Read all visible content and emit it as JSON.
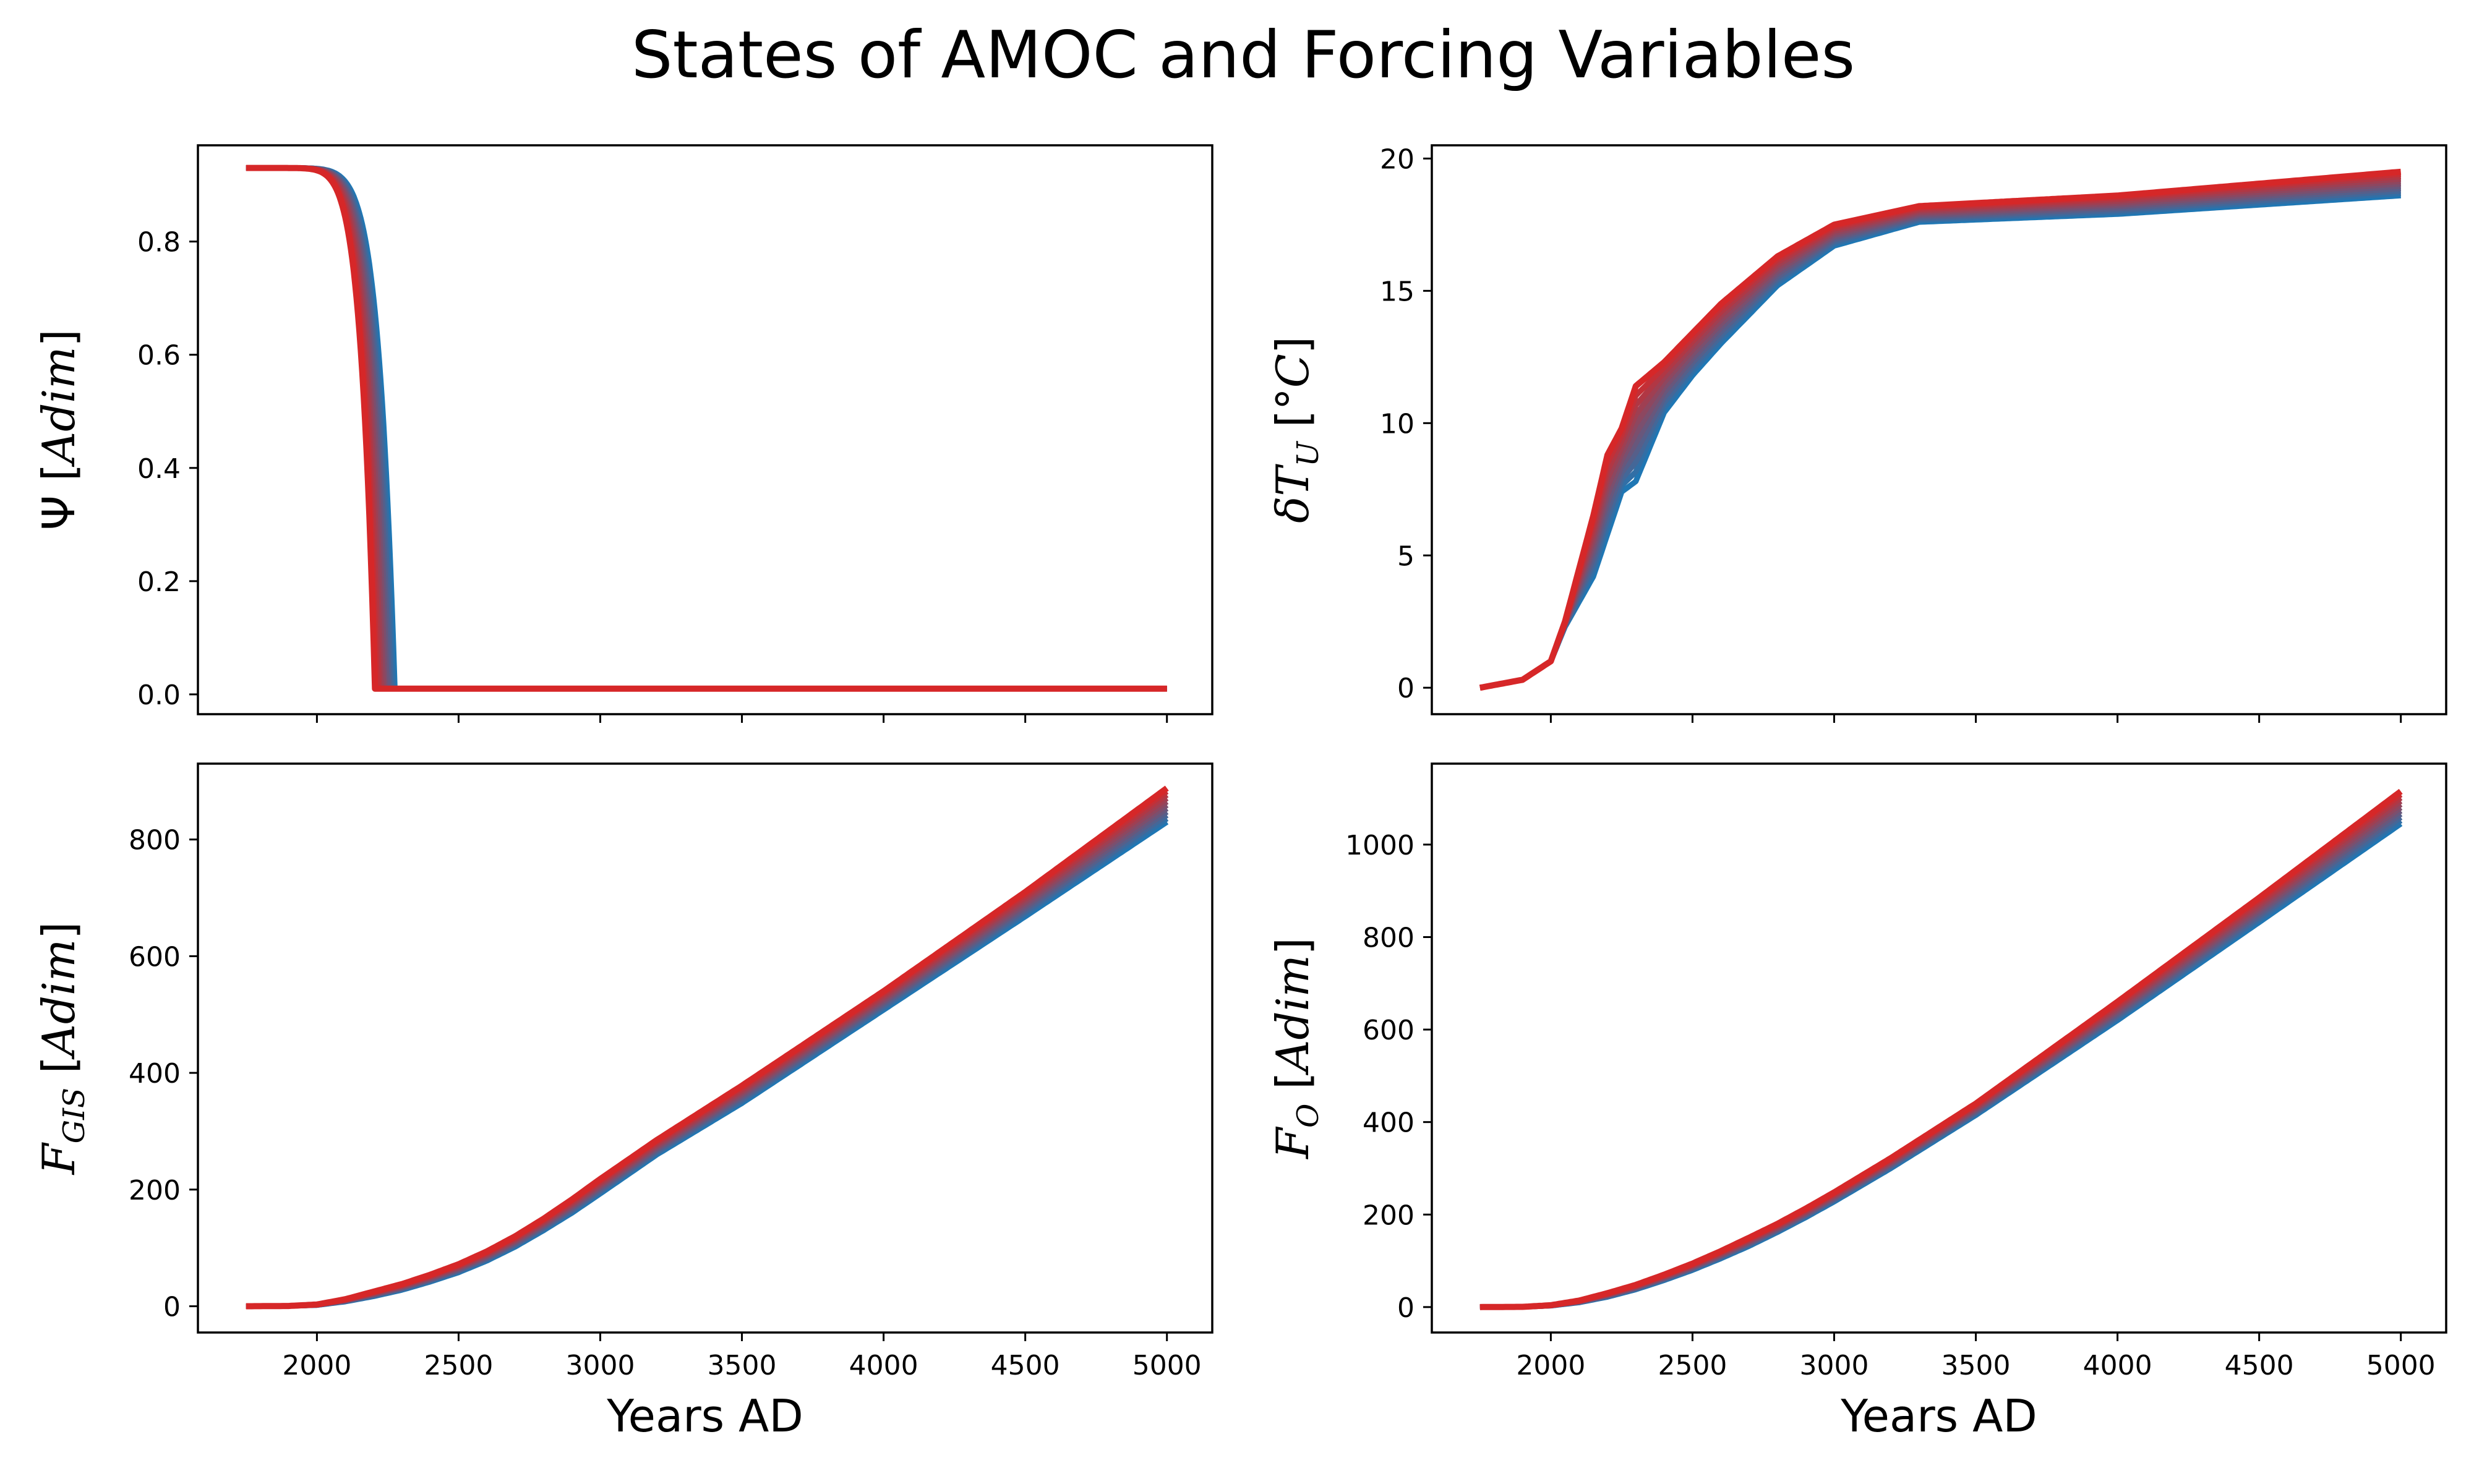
{
  "title": "States of AMOC and Forcing Variables",
  "chart_data": [
    {
      "type": "line",
      "panel": "top-left",
      "ylabel": "Ψ [Adim]",
      "xlabel": "",
      "xlim": [
        1580,
        5160
      ],
      "ylim": [
        -0.035,
        0.97
      ],
      "xticks": [
        2000,
        2500,
        3000,
        3500,
        4000,
        4500,
        5000
      ],
      "yticks": [
        0.0,
        0.2,
        0.4,
        0.6,
        0.8
      ],
      "ytick_labels": [
        "0.0",
        "0.2",
        "0.4",
        "0.6",
        "0.8"
      ],
      "xtick_labels": [],
      "color_range": [
        "#1f77b4",
        "#d62728"
      ],
      "ensemble": {
        "members": 10,
        "start": 1750,
        "end": 5000,
        "initial": 0.93,
        "collapse_year_range": [
          2275,
          2205
        ],
        "floor": 0.01
      }
    },
    {
      "type": "line",
      "panel": "top-right",
      "ylabel": "δT_U [°C]",
      "xlabel": "",
      "xlim": [
        1580,
        5160
      ],
      "ylim": [
        -1,
        20.5
      ],
      "xticks": [
        2000,
        2500,
        3000,
        3500,
        4000,
        4500,
        5000
      ],
      "yticks": [
        0,
        5,
        10,
        15,
        20
      ],
      "ytick_labels": [
        "0",
        "5",
        "10",
        "15",
        "20"
      ],
      "xtick_labels": [],
      "color_range": [
        "#1f77b4",
        "#d62728"
      ],
      "series_low": {
        "name": "",
        "x": [
          1750,
          1900,
          2000,
          2050,
          2150,
          2250,
          2300,
          2400,
          2500,
          2600,
          2800,
          3000,
          3300,
          4000,
          5000
        ],
        "values": [
          0,
          0.3,
          1.0,
          2.3,
          4.2,
          7.4,
          7.8,
          10.4,
          11.8,
          13.0,
          15.2,
          16.7,
          17.6,
          17.9,
          18.6
        ]
      },
      "series_high": {
        "name": "",
        "x": [
          1750,
          1900,
          2000,
          2050,
          2150,
          2200,
          2250,
          2300,
          2400,
          2500,
          2600,
          2800,
          3000,
          3300,
          4000,
          5000
        ],
        "values": [
          0,
          0.3,
          1.0,
          2.5,
          6.5,
          8.8,
          9.8,
          11.4,
          12.3,
          13.4,
          14.5,
          16.3,
          17.5,
          18.2,
          18.6,
          19.5
        ]
      }
    },
    {
      "type": "line",
      "panel": "bottom-left",
      "ylabel": "F_GIS [Adim]",
      "xlabel": "Years AD",
      "xlim": [
        1580,
        5160
      ],
      "ylim": [
        -45,
        930
      ],
      "xticks": [
        2000,
        2500,
        3000,
        3500,
        4000,
        4500,
        5000
      ],
      "xtick_labels": [
        "2000",
        "2500",
        "3000",
        "3500",
        "4000",
        "4500",
        "5000"
      ],
      "yticks": [
        0,
        200,
        400,
        600,
        800
      ],
      "ytick_labels": [
        "0",
        "200",
        "400",
        "600",
        "800"
      ],
      "color_range": [
        "#1f77b4",
        "#d62728"
      ],
      "series_low": {
        "name": "",
        "x": [
          1750,
          1900,
          2000,
          2100,
          2200,
          2300,
          2400,
          2500,
          2600,
          2700,
          2800,
          2900,
          3000,
          3200,
          3500,
          4000,
          4500,
          5000
        ],
        "values": [
          0,
          0.5,
          2,
          8,
          17,
          28,
          42,
          58,
          78,
          102,
          130,
          160,
          193,
          260,
          348,
          508,
          668,
          830
        ]
      },
      "series_high": {
        "name": "",
        "x": [
          1750,
          1900,
          2000,
          2100,
          2200,
          2300,
          2400,
          2500,
          2600,
          2700,
          2800,
          2900,
          3000,
          3200,
          3500,
          4000,
          4500,
          5000
        ],
        "values": [
          0,
          0.5,
          3,
          12,
          25,
          38,
          54,
          72,
          94,
          120,
          150,
          183,
          218,
          285,
          378,
          540,
          710,
          888
        ]
      }
    },
    {
      "type": "line",
      "panel": "bottom-right",
      "ylabel": "F_O [Adim]",
      "xlabel": "Years AD",
      "xlim": [
        1580,
        5160
      ],
      "ylim": [
        -55,
        1175
      ],
      "xticks": [
        2000,
        2500,
        3000,
        3500,
        4000,
        4500,
        5000
      ],
      "xtick_labels": [
        "2000",
        "2500",
        "3000",
        "3500",
        "4000",
        "4500",
        "5000"
      ],
      "yticks": [
        0,
        200,
        400,
        600,
        800,
        1000
      ],
      "ytick_labels": [
        "0",
        "200",
        "400",
        "600",
        "800",
        "1000"
      ],
      "color_range": [
        "#1f77b4",
        "#d62728"
      ],
      "series_low": {
        "name": "",
        "x": [
          1750,
          1900,
          2000,
          2100,
          2200,
          2300,
          2400,
          2500,
          2600,
          2700,
          2800,
          2900,
          3000,
          3200,
          3500,
          4000,
          4500,
          5000
        ],
        "values": [
          0,
          0.5,
          3,
          10,
          22,
          38,
          58,
          80,
          105,
          132,
          162,
          194,
          228,
          300,
          415,
          620,
          832,
          1045
        ]
      },
      "series_high": {
        "name": "",
        "x": [
          1750,
          1900,
          2000,
          2100,
          2200,
          2300,
          2400,
          2500,
          2600,
          2700,
          2800,
          2900,
          3000,
          3200,
          3500,
          4000,
          4500,
          5000
        ],
        "values": [
          0,
          0.5,
          4,
          14,
          30,
          48,
          70,
          94,
          121,
          150,
          180,
          213,
          248,
          322,
          440,
          660,
          885,
          1115
        ]
      }
    }
  ]
}
